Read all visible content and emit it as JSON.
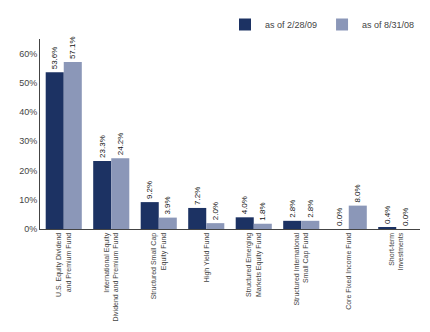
{
  "chart_data": {
    "type": "bar",
    "categories": [
      "U.S. Equity Dividend\nand Premium Fund",
      "International Equity\nDividend and Premium Fund",
      "Structured Small Cap\nEquity Fund",
      "High Yield Fund",
      "Structured Emerging\nMarkets Equity Fund",
      "Structured International\nSmall Cap Fund",
      "Core Fixed Income Fund",
      "Short-term\nInvestments"
    ],
    "series": [
      {
        "name": "as of 2/28/09",
        "color": "#1c3263",
        "values": [
          53.6,
          23.3,
          9.2,
          7.2,
          4.0,
          2.8,
          0.0,
          0.4
        ],
        "value_labels": [
          "53.6%",
          "23.3%",
          "9.2%",
          "7.2%",
          "4.0%",
          "2.8%",
          "0.0%",
          "0.4%"
        ]
      },
      {
        "name": "as of 8/31/08",
        "color": "#8b97b8",
        "values": [
          57.1,
          24.2,
          3.9,
          2.0,
          1.8,
          2.8,
          8.0,
          0.0
        ],
        "value_labels": [
          "57.1%",
          "24.2%",
          "3.9%",
          "2.0%",
          "1.8%",
          "2.8%",
          "8.0%",
          "0.0%"
        ]
      }
    ],
    "ylim": [
      0,
      65
    ],
    "yticks": [
      {
        "value": 0,
        "label": "0%"
      },
      {
        "value": 10,
        "label": "10%"
      },
      {
        "value": 20,
        "label": "20%"
      },
      {
        "value": 30,
        "label": "30%"
      },
      {
        "value": 40,
        "label": "40%"
      },
      {
        "value": 50,
        "label": "50%"
      },
      {
        "value": 60,
        "label": "60%"
      }
    ],
    "grid": false,
    "legend": "upper right",
    "data_labels": true
  }
}
